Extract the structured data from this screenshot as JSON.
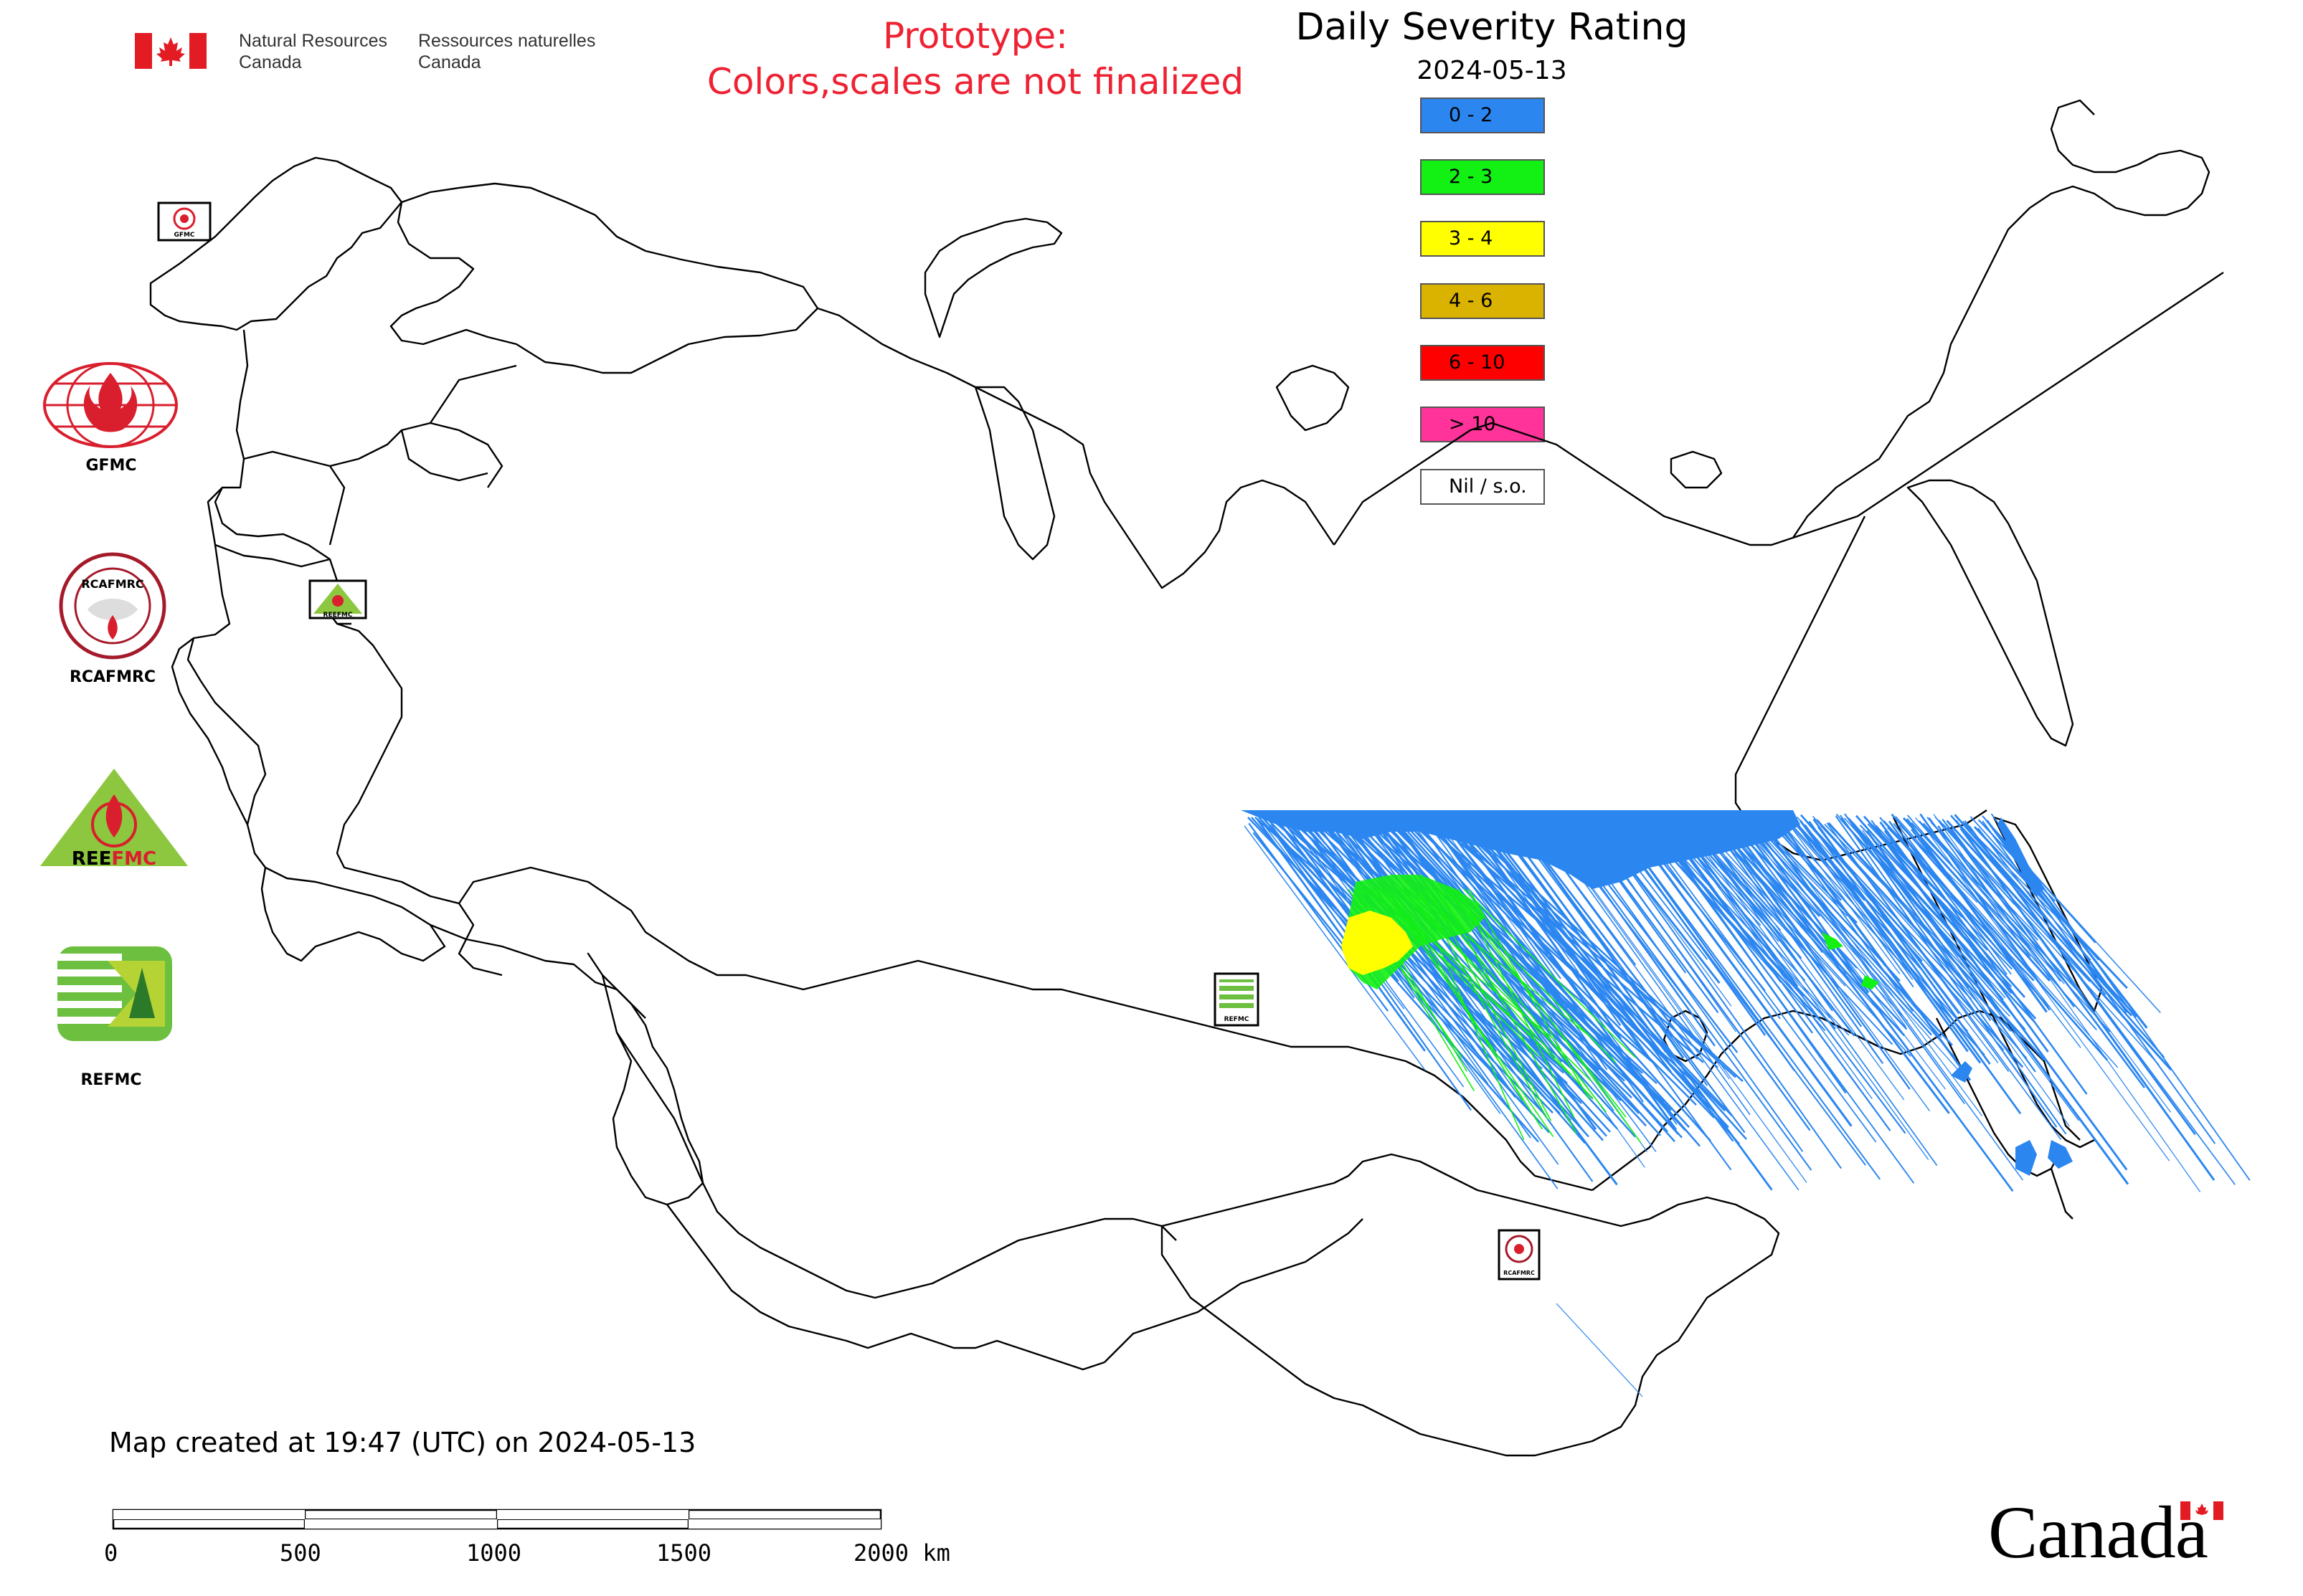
{
  "header": {
    "org_en_line1": "Natural Resources",
    "org_en_line2": "Canada",
    "org_fr_line1": "Ressources naturelles",
    "org_fr_line2": "Canada",
    "prototype_line1": "Prototype:",
    "prototype_line2": "Colors,scales are not finalized"
  },
  "legend": {
    "title": "Daily Severity Rating",
    "date": "2024-05-13",
    "classes": [
      {
        "label": "0 - 2",
        "color": "#2b86f0"
      },
      {
        "label": "2 - 3",
        "color": "#13f013"
      },
      {
        "label": "3 - 4",
        "color": "#ffff00"
      },
      {
        "label": "4 - 6",
        "color": "#d9b300"
      },
      {
        "label": "6 - 10",
        "color": "#ff0000"
      },
      {
        "label": "> 10",
        "color": "#ff3399"
      },
      {
        "label": "Nil / s.o.",
        "color": "#ffffff"
      }
    ]
  },
  "side_logos": [
    {
      "label": "GFMC",
      "icon": "gfmc-logo"
    },
    {
      "label": "RCAFMRC",
      "icon": "rcafmrc-logo"
    },
    {
      "label": "",
      "icon": "reefmc-logo",
      "text": "REEFMC"
    },
    {
      "label": "REFMC",
      "icon": "refmc-logo"
    }
  ],
  "map_markers": {
    "gfmc": "GFMC",
    "reefmc": "REEFMC",
    "refmc": "REFMC",
    "rcafmrc": "RCAFMRC"
  },
  "footer": {
    "created": "Map created at 19:47 (UTC) on 2024-05-13",
    "scale_labels": [
      "0",
      "500",
      "1000",
      "1500",
      "2000 km"
    ],
    "wordmark": "Canada"
  },
  "colors": {
    "prototype_text": "#ee2233",
    "outline": "#000000",
    "dsr_low": "#2b86f0",
    "dsr_mid": "#13f013",
    "dsr_high": "#ffff00"
  }
}
